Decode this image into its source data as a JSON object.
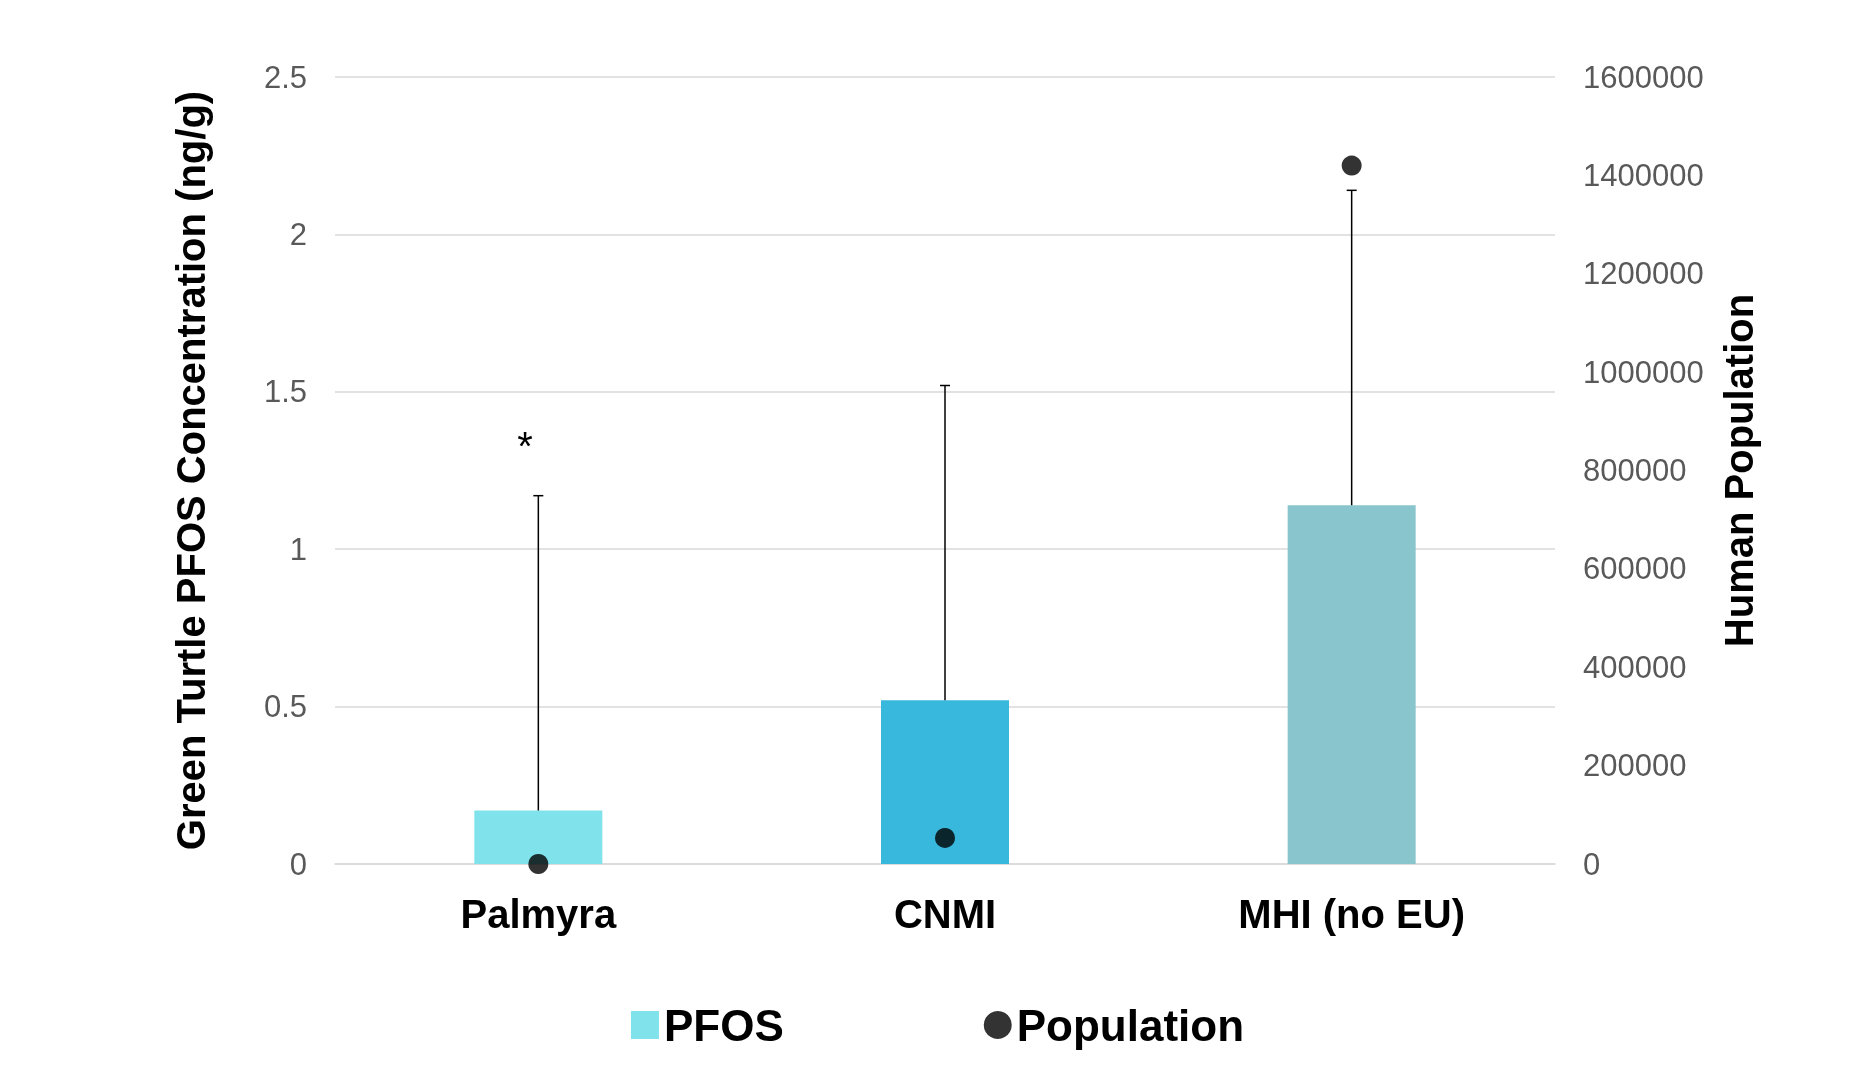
{
  "chart_data": {
    "type": "bar",
    "ylabel": "Green Turtle PFOS Concentration (ng/g)",
    "y2label": "Human Population",
    "categories": [
      "Palmyra",
      "CNMI",
      "MHI (no EU)"
    ],
    "series": [
      {
        "name": "PFOS",
        "values": [
          0.17,
          0.52,
          1.14
        ],
        "colors": [
          "#80e3ec",
          "#38b8dc",
          "#89c5cc"
        ],
        "errors": [
          [
            0.17,
            1.17
          ],
          [
            0.52,
            1.52
          ],
          [
            1.14,
            2.14
          ]
        ]
      },
      {
        "name": "Population",
        "type": "scatter",
        "axis": "y2",
        "color": "#000000",
        "x": [
          "Palmyra",
          "CNMI",
          "MHI (no EU)"
        ],
        "values": [
          0,
          53000,
          1420000
        ]
      }
    ],
    "ylim": [
      0,
      2.5
    ],
    "yticks": [
      0,
      0.5,
      1,
      1.5,
      2,
      2.5
    ],
    "y2lim": [
      0,
      1600000
    ],
    "y2ticks": [
      0,
      200000,
      400000,
      600000,
      800000,
      1000000,
      1200000,
      1400000,
      1600000
    ],
    "annotations": [
      "*"
    ],
    "grid": "y",
    "legend": "bottom",
    "marker": "circle"
  }
}
